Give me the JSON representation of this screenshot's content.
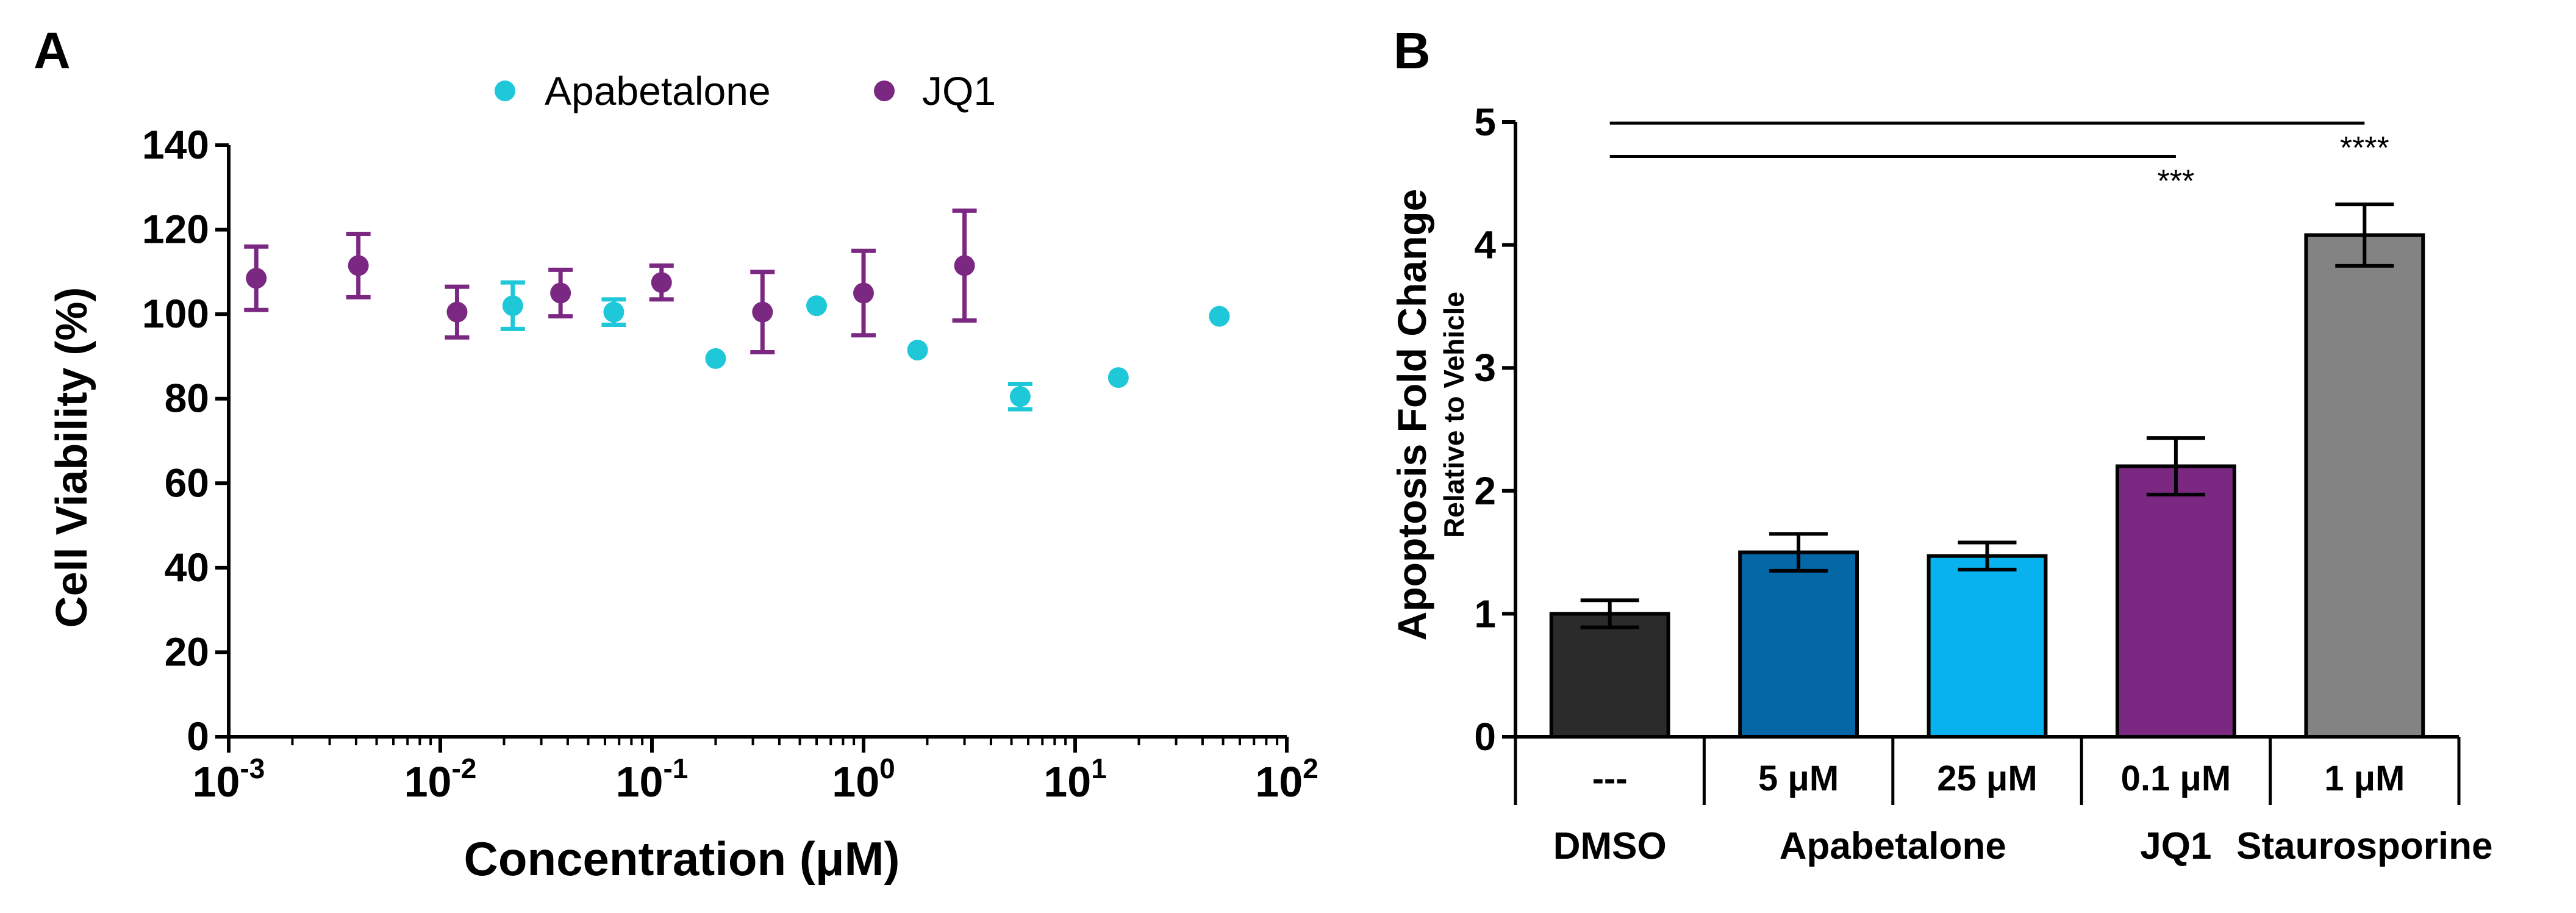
{
  "chart_data": [
    {
      "type": "scatter",
      "panel_label": "A",
      "xlabel": "Concentration (μM)",
      "ylabel": "Cell Viability (%)",
      "x_scale": "log",
      "xlim": [
        0.001,
        100
      ],
      "ylim": [
        0,
        140
      ],
      "x_ticks": [
        {
          "value": 0.001,
          "base": "10",
          "exp": "-3"
        },
        {
          "value": 0.01,
          "base": "10",
          "exp": "-2"
        },
        {
          "value": 0.1,
          "base": "10",
          "exp": "-1"
        },
        {
          "value": 1,
          "base": "10",
          "exp": "0"
        },
        {
          "value": 10,
          "base": "10",
          "exp": "1"
        },
        {
          "value": 100,
          "base": "10",
          "exp": "2"
        }
      ],
      "y_ticks": [
        "0",
        "20",
        "40",
        "60",
        "80",
        "100",
        "120",
        "140"
      ],
      "legend_position": "top-center",
      "series": [
        {
          "name": "Apabetalone",
          "color": "#1ec8d8",
          "points": [
            {
              "x": 0.022,
              "y": 102,
              "err": 5.5
            },
            {
              "x": 0.066,
              "y": 100.5,
              "err": 3
            },
            {
              "x": 0.2,
              "y": 89.5,
              "err": 0
            },
            {
              "x": 0.6,
              "y": 102,
              "err": 0
            },
            {
              "x": 1.8,
              "y": 91.5,
              "err": 0
            },
            {
              "x": 5.5,
              "y": 80.5,
              "err": 3
            },
            {
              "x": 16,
              "y": 85,
              "err": 0
            },
            {
              "x": 48,
              "y": 99.5,
              "err": 0
            }
          ]
        },
        {
          "name": "JQ1",
          "color": "#7b2882",
          "points": [
            {
              "x": 0.00135,
              "y": 108.5,
              "err": 7.5
            },
            {
              "x": 0.0041,
              "y": 111.5,
              "err": 7.5
            },
            {
              "x": 0.012,
              "y": 100.5,
              "err": 6
            },
            {
              "x": 0.037,
              "y": 105,
              "err": 5.5
            },
            {
              "x": 0.111,
              "y": 107.5,
              "err": 4
            },
            {
              "x": 0.333,
              "y": 100.5,
              "err": 9.5
            },
            {
              "x": 1.0,
              "y": 105,
              "err": 10
            },
            {
              "x": 3.0,
              "y": 111.5,
              "err": 13
            }
          ]
        }
      ]
    },
    {
      "type": "bar",
      "panel_label": "B",
      "ylabel": "Apoptosis Fold Change",
      "ylabel_sub": "Relative to Vehicle",
      "ylim": [
        0,
        5
      ],
      "y_ticks": [
        "0",
        "1",
        "2",
        "3",
        "4",
        "5"
      ],
      "categories": [
        "---",
        "5 μM",
        "25 μM",
        "0.1 μM",
        "1 μM"
      ],
      "values": [
        1.0,
        1.5,
        1.47,
        2.2,
        4.08
      ],
      "errors": [
        0.11,
        0.15,
        0.11,
        0.23,
        0.25
      ],
      "colors": [
        "#2b2b2b",
        "#0667a6",
        "#07b2ee",
        "#7b2882",
        "#838383"
      ],
      "groups": [
        {
          "label": "DMSO",
          "start": 0,
          "end": 0
        },
        {
          "label": "Apabetalone",
          "start": 1,
          "end": 2
        },
        {
          "label": "JQ1",
          "start": 3,
          "end": 3
        },
        {
          "label": "Staurosporine",
          "start": 4,
          "end": 4
        }
      ],
      "significance": [
        {
          "from": 0,
          "to": 3,
          "label": "***"
        },
        {
          "from": 0,
          "to": 4,
          "label": "****"
        }
      ]
    }
  ]
}
